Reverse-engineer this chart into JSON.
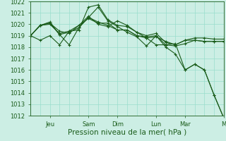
{
  "xlabel": "Pression niveau de la mer( hPa )",
  "bg_color": "#cceee4",
  "grid_color": "#99ddcc",
  "line_color": "#1a5c1a",
  "ylim": [
    1012,
    1022
  ],
  "yticks": [
    1012,
    1013,
    1014,
    1015,
    1016,
    1017,
    1018,
    1019,
    1020,
    1021,
    1022
  ],
  "n_points": 21,
  "xtick_labels_map": {
    "2": "Jeu",
    "6": "Sam",
    "9": "Dim",
    "13": "Lun",
    "16": "Mar",
    "20": "M"
  },
  "series": [
    [
      1019.0,
      1018.6,
      1019.0,
      1018.2,
      1019.4,
      1019.5,
      1021.5,
      1021.7,
      1020.4,
      1019.9,
      1019.8,
      1019.3,
      1018.8,
      1018.2,
      1018.2,
      1018.3,
      1016.0,
      1016.5,
      1016.0,
      1013.8,
      1011.8
    ],
    [
      1019.0,
      1019.9,
      1020.0,
      1019.2,
      1019.4,
      1019.9,
      1020.7,
      1020.0,
      1019.8,
      1020.3,
      1019.9,
      1019.3,
      1019.0,
      1019.2,
      1018.4,
      1018.2,
      1018.6,
      1018.8,
      1018.8,
      1018.7,
      1018.7
    ],
    [
      1019.0,
      1019.9,
      1020.1,
      1019.4,
      1019.2,
      1019.9,
      1020.5,
      1020.1,
      1020.1,
      1019.5,
      1019.5,
      1019.0,
      1018.9,
      1019.0,
      1018.2,
      1018.1,
      1018.3,
      1018.6,
      1018.5,
      1018.5,
      1018.5
    ],
    [
      1019.0,
      1019.9,
      1020.1,
      1019.1,
      1019.3,
      1019.7,
      1020.6,
      1020.2,
      1019.9,
      1019.5,
      1019.5,
      1019.0,
      1018.8,
      1018.9,
      1018.5,
      1018.2,
      1018.6,
      1018.6,
      1018.5,
      1018.5,
      1018.5
    ],
    [
      1019.0,
      1019.9,
      1020.2,
      1019.1,
      1018.2,
      1019.7,
      1020.6,
      1021.5,
      1020.3,
      1019.8,
      1019.3,
      1018.9,
      1018.1,
      1019.0,
      1018.0,
      1017.4,
      1016.0,
      1016.5,
      1016.0,
      1013.8,
      1011.8
    ]
  ],
  "marker": "+",
  "markersize": 3,
  "linewidth": 0.8,
  "xlabel_fontsize": 7.5,
  "tick_fontsize": 6.0
}
